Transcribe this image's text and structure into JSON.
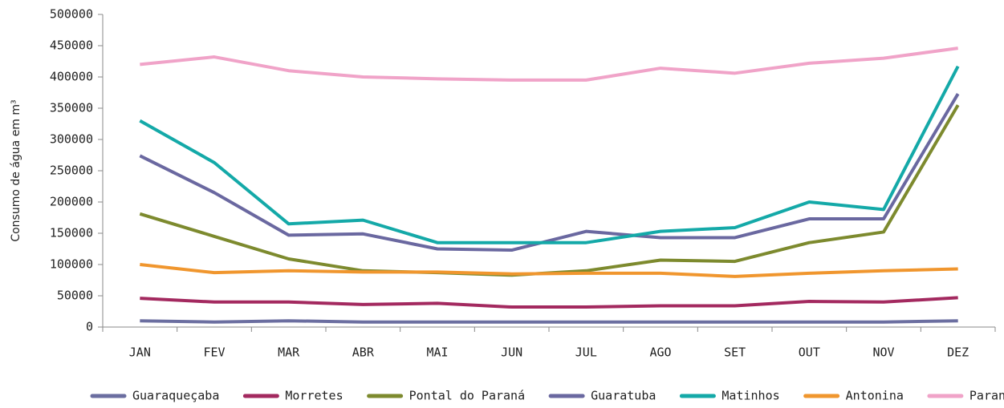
{
  "chart_data": {
    "type": "line",
    "y_label": "Consumo de água em m³",
    "categories": [
      "JAN",
      "FEV",
      "MAR",
      "ABR",
      "MAI",
      "JUN",
      "JUL",
      "AGO",
      "SET",
      "OUT",
      "NOV",
      "DEZ"
    ],
    "ylim": [
      0,
      500000
    ],
    "yticks": [
      0,
      50000,
      100000,
      150000,
      200000,
      250000,
      300000,
      350000,
      400000,
      450000,
      500000
    ],
    "grid": false,
    "legend": "bottom",
    "series": [
      {
        "name": "Guaraqueçaba",
        "color": "#6b6ea0",
        "values": [
          10000,
          8000,
          10000,
          8000,
          8000,
          8000,
          8000,
          8000,
          8000,
          8000,
          8000,
          10000
        ]
      },
      {
        "name": "Morretes",
        "color": "#a3295f",
        "values": [
          46000,
          40000,
          40000,
          36000,
          38000,
          32000,
          32000,
          34000,
          34000,
          41000,
          40000,
          47000
        ]
      },
      {
        "name": "Pontal do Paraná",
        "color": "#7d8a2e",
        "values": [
          181000,
          145000,
          109000,
          90000,
          87000,
          83000,
          90000,
          107000,
          105000,
          135000,
          152000,
          355000
        ]
      },
      {
        "name": "Guaratuba",
        "color": "#6a68a0",
        "values": [
          274000,
          215000,
          147000,
          149000,
          125000,
          123000,
          153000,
          143000,
          143000,
          173000,
          173000,
          373000
        ]
      },
      {
        "name": "Matinhos",
        "color": "#14a9a8",
        "values": [
          330000,
          263000,
          165000,
          171000,
          135000,
          135000,
          135000,
          153000,
          159000,
          200000,
          188000,
          417000
        ]
      },
      {
        "name": "Antonina",
        "color": "#f0962e",
        "values": [
          100000,
          87000,
          90000,
          88000,
          88000,
          85000,
          86000,
          86000,
          81000,
          86000,
          90000,
          93000
        ]
      },
      {
        "name": "Paranaguá",
        "color": "#f0a3c8",
        "values": [
          420000,
          432000,
          410000,
          400000,
          397000,
          395000,
          395000,
          414000,
          406000,
          422000,
          430000,
          446000
        ]
      }
    ]
  }
}
